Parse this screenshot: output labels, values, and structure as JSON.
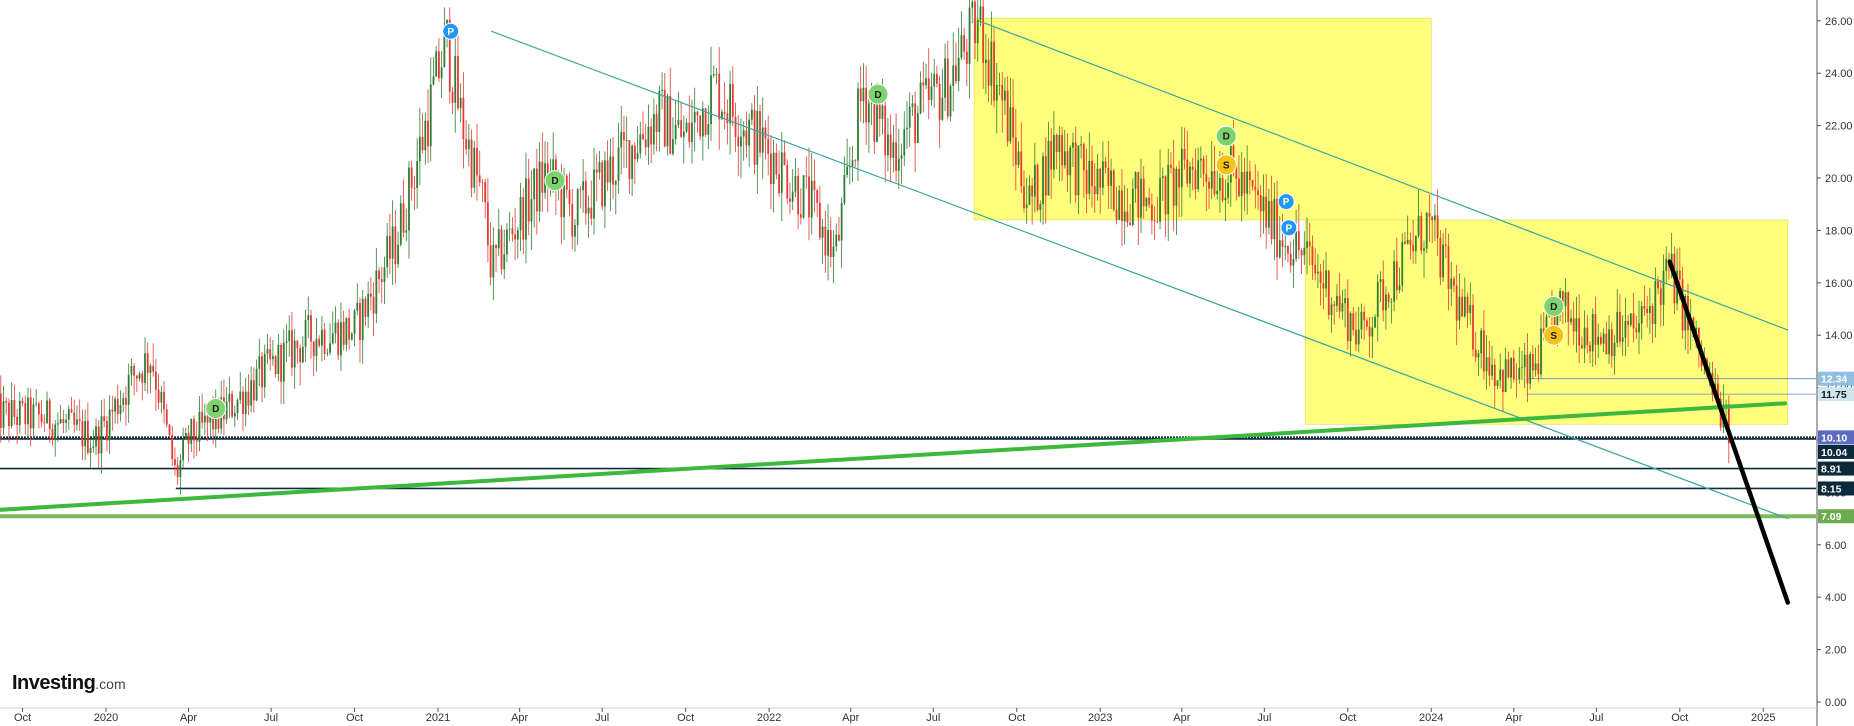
{
  "chart_data": {
    "type": "candlestick",
    "title": "",
    "xlabel": "",
    "ylabel": "",
    "ylim": [
      -0.5,
      27
    ],
    "y_axis_position": "right",
    "y_ticks": [
      "0.00",
      "2.00",
      "4.00",
      "6.00",
      "8.00",
      "10.00",
      "12.00",
      "14.00",
      "16.00",
      "18.00",
      "20.00",
      "22.00",
      "24.00",
      "26.00"
    ],
    "x_ticks": [
      "Oct",
      "2020",
      "Apr",
      "Jul",
      "Oct",
      "2021",
      "Apr",
      "Jul",
      "Oct",
      "2022",
      "Apr",
      "Jul",
      "Oct",
      "2023",
      "Apr",
      "Jul",
      "Oct",
      "2024",
      "Apr",
      "Jul",
      "Oct",
      "2025"
    ],
    "price_path": [
      [
        "2019-09-01",
        11.0
      ],
      [
        "2019-11-01",
        10.8
      ],
      [
        "2019-12-20",
        10.0
      ],
      [
        "2020-02-01",
        12.5
      ],
      [
        "2020-02-20",
        13.2
      ],
      [
        "2020-03-18",
        8.6
      ],
      [
        "2020-04-01",
        10.0
      ],
      [
        "2020-05-15",
        11.2
      ],
      [
        "2020-07-01",
        12.8
      ],
      [
        "2020-08-15",
        14.0
      ],
      [
        "2020-10-01",
        14.2
      ],
      [
        "2020-11-15",
        17.5
      ],
      [
        "2020-12-15",
        21.5
      ],
      [
        "2021-01-10",
        25.3
      ],
      [
        "2021-01-25",
        22.5
      ],
      [
        "2021-02-20",
        19.0
      ],
      [
        "2021-03-01",
        16.5
      ],
      [
        "2021-04-01",
        18.5
      ],
      [
        "2021-05-01",
        20.2
      ],
      [
        "2021-06-01",
        18.5
      ],
      [
        "2021-07-15",
        20.5
      ],
      [
        "2021-09-01",
        22.4
      ],
      [
        "2021-10-01",
        21.5
      ],
      [
        "2021-11-01",
        23.5
      ],
      [
        "2021-12-01",
        22.2
      ],
      [
        "2022-01-01",
        21.0
      ],
      [
        "2022-02-15",
        19.0
      ],
      [
        "2022-03-15",
        17.0
      ],
      [
        "2022-04-15",
        23.5
      ],
      [
        "2022-05-15",
        21.0
      ],
      [
        "2022-06-15",
        22.5
      ],
      [
        "2022-07-15",
        23.5
      ],
      [
        "2022-08-20",
        26.0
      ],
      [
        "2022-09-15",
        23.0
      ],
      [
        "2022-10-15",
        19.0
      ],
      [
        "2022-11-15",
        21.5
      ],
      [
        "2022-12-15",
        20.0
      ],
      [
        "2023-01-15",
        19.5
      ],
      [
        "2023-03-01",
        19.0
      ],
      [
        "2023-04-15",
        20.5
      ],
      [
        "2023-06-01",
        20.0
      ],
      [
        "2023-07-15",
        18.0
      ],
      [
        "2023-08-15",
        17.0
      ],
      [
        "2023-09-15",
        15.5
      ],
      [
        "2023-10-15",
        14.0
      ],
      [
        "2023-11-15",
        16.0
      ],
      [
        "2023-12-28",
        18.3
      ],
      [
        "2024-02-01",
        15.0
      ],
      [
        "2024-03-15",
        12.5
      ],
      [
        "2024-04-20",
        12.5
      ],
      [
        "2024-05-20",
        15.0
      ],
      [
        "2024-07-01",
        14.0
      ],
      [
        "2024-08-15",
        14.2
      ],
      [
        "2024-09-20",
        16.5
      ],
      [
        "2024-10-15",
        14.0
      ],
      [
        "2024-11-10",
        11.5
      ],
      [
        "2024-11-25",
        10.3
      ]
    ],
    "horizontal_levels": [
      {
        "value": 12.34,
        "label": "12.34",
        "line_color": "#5b8ccf",
        "badge_color": "#8fbedf"
      },
      {
        "value": 11.75,
        "label": "11.75",
        "line_color": "#5b8ccf",
        "badge_color": "#cde6ef"
      },
      {
        "value": 10.1,
        "label": "10.10",
        "line_color": "#0d2a3d",
        "badge_color": "#5c6bc0"
      },
      {
        "value": 10.04,
        "label": "10.04",
        "line_color": "#0d2a3d",
        "badge_color": "#0d2a3d"
      },
      {
        "value": 8.91,
        "label": "8.91",
        "line_color": "#0d2a3d",
        "badge_color": "#0d2a3d"
      },
      {
        "value": 8.15,
        "label": "8.15",
        "line_color": "#0d2a3d",
        "badge_color": "#0d2a3d"
      },
      {
        "value": 7.09,
        "label": "7.09",
        "line_color": "#7cba59",
        "badge_color": "#6cab4e"
      }
    ],
    "trendlines": [
      {
        "name": "rising-support",
        "color": "#3cb83c",
        "from": [
          "2019-08-20",
          7.3
        ],
        "to": [
          "2025-01-25",
          11.4
        ]
      },
      {
        "name": "channel-upper",
        "color": "#3aa7a0",
        "from": [
          "2021-03-01",
          25.6
        ],
        "to": [
          "2025-01-28",
          7.0
        ]
      },
      {
        "name": "channel-lower",
        "color": "#3aa7a0",
        "from": [
          "2022-08-20",
          26.0
        ],
        "to": [
          "2025-01-28",
          14.2
        ]
      },
      {
        "name": "breakdown",
        "color": "#000000",
        "from": [
          "2024-09-20",
          16.8
        ],
        "to": [
          "2025-01-28",
          3.8
        ]
      }
    ],
    "zones": [
      {
        "from": [
          "2022-08-15",
          26.1
        ],
        "to": [
          "2024-01-01",
          18.4
        ],
        "color": "#ffff66"
      },
      {
        "from": [
          "2023-08-15",
          18.4
        ],
        "to": [
          "2025-01-28",
          10.6
        ],
        "color": "#ffff66"
      }
    ],
    "markers": [
      {
        "letter": "P",
        "date": "2021-01-15",
        "value": 25.6,
        "color": "#2196f3"
      },
      {
        "letter": "D",
        "date": "2020-05-01",
        "value": 11.2,
        "color": "#7dd36e"
      },
      {
        "letter": "D",
        "date": "2021-05-10",
        "value": 19.9,
        "color": "#7dd36e"
      },
      {
        "letter": "D",
        "date": "2022-05-01",
        "value": 23.2,
        "color": "#7dd36e"
      },
      {
        "letter": "D",
        "date": "2023-05-20",
        "value": 21.6,
        "color": "#7dd36e"
      },
      {
        "letter": "S",
        "date": "2023-05-20",
        "value": 20.5,
        "color": "#f5c218"
      },
      {
        "letter": "P",
        "date": "2023-07-25",
        "value": 19.1,
        "color": "#2196f3"
      },
      {
        "letter": "P",
        "date": "2023-07-28",
        "value": 18.1,
        "color": "#2196f3"
      },
      {
        "letter": "D",
        "date": "2024-05-15",
        "value": 15.1,
        "color": "#7dd36e"
      },
      {
        "letter": "S",
        "date": "2024-05-15",
        "value": 14.0,
        "color": "#f5c218"
      }
    ]
  },
  "logo": {
    "brand": "Investing",
    "tld": ".com"
  }
}
